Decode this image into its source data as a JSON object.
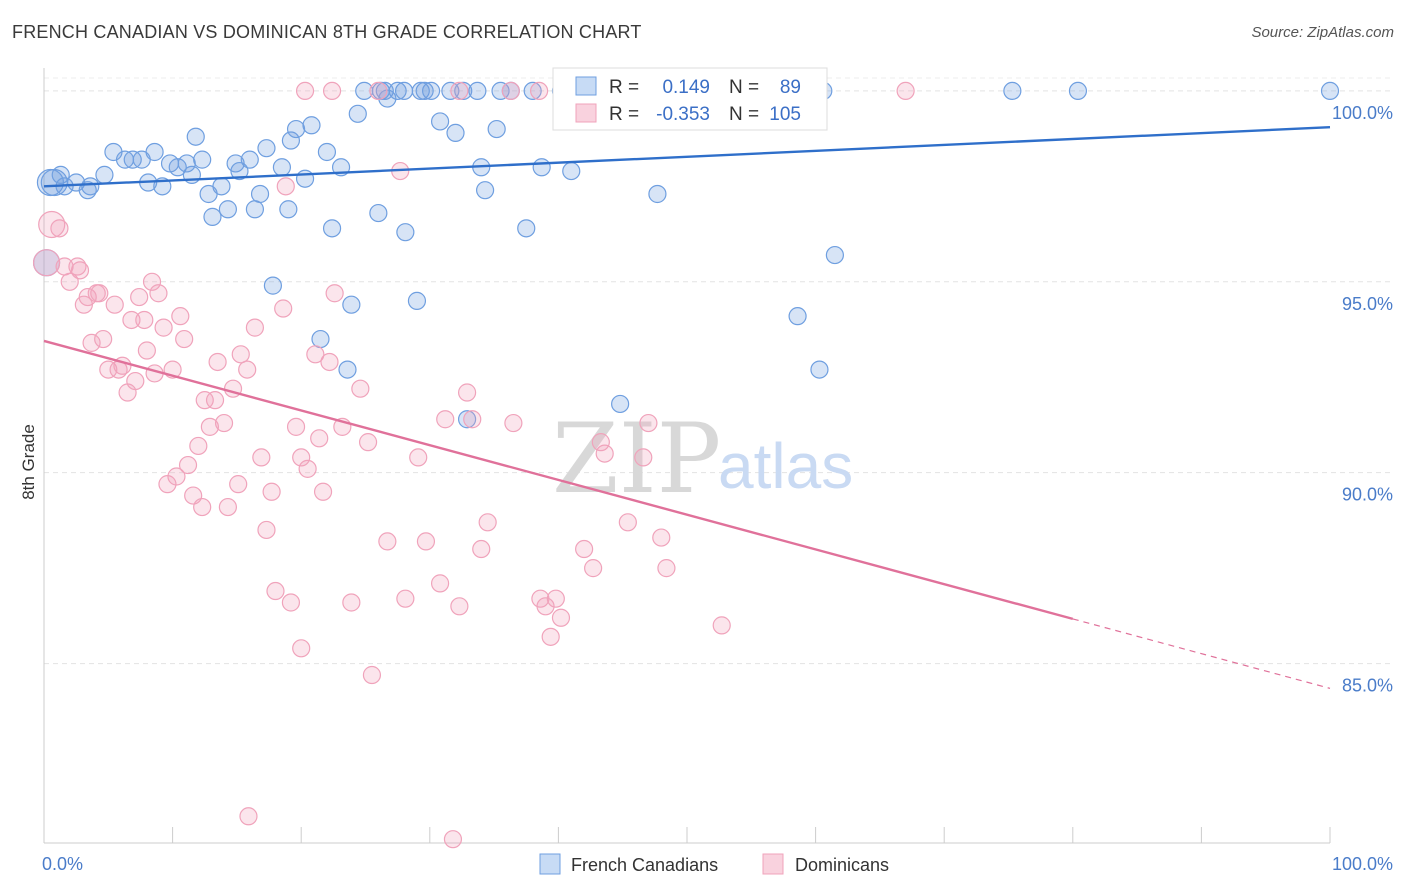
{
  "header": {
    "title": "FRENCH CANADIAN VS DOMINICAN 8TH GRADE CORRELATION CHART",
    "source": "Source: ZipAtlas.com"
  },
  "watermark": {
    "zip": "ZIP",
    "atlas": "atlas"
  },
  "stats": [
    {
      "r_label": "R =",
      "r_value": "0.149",
      "n_label": "N =",
      "n_value": "89",
      "color": "#6f9fe0"
    },
    {
      "r_label": "R =",
      "r_value": "-0.353",
      "n_label": "N =",
      "n_value": "105",
      "color": "#f0a3bb"
    }
  ],
  "legend": [
    {
      "label": "French Canadians",
      "color": "#6f9fe0"
    },
    {
      "label": "Dominicans",
      "color": "#f0a3bb"
    }
  ],
  "chart_data": {
    "type": "scatter",
    "title": "FRENCH CANADIAN VS DOMINICAN 8TH GRADE CORRELATION CHART",
    "xlabel": "",
    "ylabel": "8th Grade",
    "xlim": [
      0,
      100
    ],
    "ylim": [
      80.3,
      100.6
    ],
    "x_tick_labels": [
      "0.0%",
      "100.0%"
    ],
    "y_ticks": [
      85,
      90,
      95,
      100
    ],
    "y_tick_labels": [
      "85.0%",
      "90.0%",
      "95.0%",
      "100.0%"
    ],
    "grid": true,
    "legend_position": "bottom-center",
    "series": [
      {
        "name": "French Canadians",
        "color": "#6f9fe0",
        "trend": {
          "x": [
            0,
            100
          ],
          "y": [
            97.5,
            99.05
          ],
          "dashed_from": null
        },
        "points": [
          [
            0.2,
            95.5
          ],
          [
            0.5,
            97.6
          ],
          [
            0.8,
            97.6
          ],
          [
            1.3,
            97.8
          ],
          [
            1.6,
            97.5
          ],
          [
            2.5,
            97.6
          ],
          [
            3.4,
            97.4
          ],
          [
            3.6,
            97.5
          ],
          [
            4.7,
            97.8
          ],
          [
            5.4,
            98.4
          ],
          [
            6.3,
            98.2
          ],
          [
            6.9,
            98.2
          ],
          [
            7.6,
            98.2
          ],
          [
            8.1,
            97.6
          ],
          [
            8.6,
            98.4
          ],
          [
            9.2,
            97.5
          ],
          [
            9.8,
            98.1
          ],
          [
            10.4,
            98.0
          ],
          [
            11.1,
            98.1
          ],
          [
            11.5,
            97.8
          ],
          [
            11.8,
            98.8
          ],
          [
            12.3,
            98.2
          ],
          [
            12.8,
            97.3
          ],
          [
            13.1,
            96.7
          ],
          [
            13.8,
            97.5
          ],
          [
            14.3,
            96.9
          ],
          [
            14.9,
            98.1
          ],
          [
            15.2,
            97.9
          ],
          [
            16.0,
            98.2
          ],
          [
            16.4,
            96.9
          ],
          [
            16.8,
            97.3
          ],
          [
            17.3,
            98.5
          ],
          [
            17.8,
            94.9
          ],
          [
            18.5,
            98.0
          ],
          [
            19.0,
            96.9
          ],
          [
            19.2,
            98.7
          ],
          [
            19.6,
            99.0
          ],
          [
            20.3,
            97.7
          ],
          [
            20.8,
            99.1
          ],
          [
            21.5,
            93.5
          ],
          [
            22.0,
            98.4
          ],
          [
            22.4,
            96.4
          ],
          [
            23.1,
            98.0
          ],
          [
            23.6,
            92.7
          ],
          [
            23.9,
            94.4
          ],
          [
            24.4,
            99.4
          ],
          [
            24.9,
            100.0
          ],
          [
            26.0,
            96.8
          ],
          [
            26.2,
            100.0
          ],
          [
            26.5,
            100.0
          ],
          [
            26.7,
            99.8
          ],
          [
            27.5,
            100.0
          ],
          [
            28.0,
            100.0
          ],
          [
            28.1,
            96.3
          ],
          [
            29.0,
            94.5
          ],
          [
            29.3,
            100.0
          ],
          [
            30.1,
            100.0
          ],
          [
            30.8,
            99.2
          ],
          [
            31.6,
            100.0
          ],
          [
            32.0,
            98.9
          ],
          [
            32.6,
            100.0
          ],
          [
            32.9,
            91.4
          ],
          [
            33.7,
            100.0
          ],
          [
            34.0,
            98.0
          ],
          [
            34.3,
            97.4
          ],
          [
            35.2,
            99.0
          ],
          [
            35.5,
            100.0
          ],
          [
            36.3,
            100.0
          ],
          [
            37.5,
            96.4
          ],
          [
            38.0,
            100.0
          ],
          [
            38.7,
            98.0
          ],
          [
            40.2,
            100.0
          ],
          [
            41.0,
            97.9
          ],
          [
            42.1,
            100.0
          ],
          [
            44.8,
            91.8
          ],
          [
            47.1,
            100.0
          ],
          [
            47.7,
            97.3
          ],
          [
            51.5,
            100.0
          ],
          [
            53.2,
            100.0
          ],
          [
            55.0,
            100.0
          ],
          [
            56.3,
            100.0
          ],
          [
            58.6,
            94.1
          ],
          [
            60.3,
            92.7
          ],
          [
            60.6,
            100.0
          ],
          [
            61.5,
            95.7
          ],
          [
            75.3,
            100.0
          ],
          [
            80.4,
            100.0
          ],
          [
            100.0,
            100.0
          ],
          [
            29.6,
            100.0
          ]
        ]
      },
      {
        "name": "Dominicans",
        "color": "#f0a3bb",
        "trend": {
          "x": [
            0,
            100
          ],
          "y": [
            93.45,
            84.35
          ],
          "dashed_from": 80
        },
        "points": [
          [
            0.2,
            95.5
          ],
          [
            0.6,
            96.5
          ],
          [
            1.2,
            96.4
          ],
          [
            1.6,
            95.4
          ],
          [
            2.0,
            95.0
          ],
          [
            2.6,
            95.4
          ],
          [
            2.8,
            95.3
          ],
          [
            3.1,
            94.4
          ],
          [
            3.4,
            94.6
          ],
          [
            3.7,
            93.4
          ],
          [
            4.1,
            94.7
          ],
          [
            4.3,
            94.7
          ],
          [
            4.6,
            93.5
          ],
          [
            5.0,
            92.7
          ],
          [
            5.5,
            94.4
          ],
          [
            5.8,
            92.7
          ],
          [
            6.1,
            92.8
          ],
          [
            6.5,
            92.1
          ],
          [
            6.8,
            94.0
          ],
          [
            7.1,
            92.4
          ],
          [
            7.4,
            94.6
          ],
          [
            7.8,
            94.0
          ],
          [
            8.0,
            93.2
          ],
          [
            8.4,
            95.0
          ],
          [
            8.6,
            92.6
          ],
          [
            8.9,
            94.7
          ],
          [
            9.3,
            93.8
          ],
          [
            9.6,
            89.7
          ],
          [
            10.0,
            92.7
          ],
          [
            10.3,
            89.9
          ],
          [
            10.6,
            94.1
          ],
          [
            10.9,
            93.5
          ],
          [
            11.2,
            90.2
          ],
          [
            11.6,
            89.4
          ],
          [
            12.0,
            90.7
          ],
          [
            12.3,
            89.1
          ],
          [
            12.5,
            91.9
          ],
          [
            12.9,
            91.2
          ],
          [
            13.3,
            91.9
          ],
          [
            13.5,
            92.9
          ],
          [
            14.0,
            91.3
          ],
          [
            14.3,
            89.1
          ],
          [
            14.7,
            92.2
          ],
          [
            15.1,
            89.7
          ],
          [
            15.3,
            93.1
          ],
          [
            15.8,
            92.7
          ],
          [
            16.4,
            93.8
          ],
          [
            16.9,
            90.4
          ],
          [
            17.3,
            88.5
          ],
          [
            17.7,
            89.5
          ],
          [
            18.0,
            86.9
          ],
          [
            18.6,
            94.3
          ],
          [
            19.2,
            86.6
          ],
          [
            19.6,
            91.2
          ],
          [
            20.0,
            85.4
          ],
          [
            20.5,
            90.1
          ],
          [
            21.1,
            93.1
          ],
          [
            21.4,
            90.9
          ],
          [
            21.7,
            89.5
          ],
          [
            22.2,
            92.9
          ],
          [
            22.6,
            94.7
          ],
          [
            23.2,
            91.2
          ],
          [
            23.9,
            86.6
          ],
          [
            24.6,
            92.2
          ],
          [
            25.2,
            90.8
          ],
          [
            25.5,
            84.7
          ],
          [
            26.0,
            100.0
          ],
          [
            26.7,
            88.2
          ],
          [
            27.7,
            97.9
          ],
          [
            28.1,
            86.7
          ],
          [
            29.1,
            90.4
          ],
          [
            29.7,
            88.2
          ],
          [
            30.8,
            87.1
          ],
          [
            31.2,
            91.4
          ],
          [
            31.8,
            80.4
          ],
          [
            32.3,
            86.5
          ],
          [
            32.9,
            92.1
          ],
          [
            33.3,
            91.4
          ],
          [
            34.0,
            88.0
          ],
          [
            34.5,
            88.7
          ],
          [
            36.5,
            91.3
          ],
          [
            38.6,
            86.7
          ],
          [
            39.0,
            86.5
          ],
          [
            39.4,
            85.7
          ],
          [
            39.8,
            86.7
          ],
          [
            40.2,
            86.2
          ],
          [
            42.0,
            88.0
          ],
          [
            42.7,
            87.5
          ],
          [
            43.3,
            90.8
          ],
          [
            43.6,
            90.5
          ],
          [
            45.4,
            88.7
          ],
          [
            46.6,
            90.4
          ],
          [
            47.0,
            91.3
          ],
          [
            48.0,
            88.3
          ],
          [
            48.4,
            87.5
          ],
          [
            52.7,
            86.0
          ],
          [
            15.9,
            81.0
          ],
          [
            20.3,
            100.0
          ],
          [
            22.4,
            100.0
          ],
          [
            32.3,
            100.0
          ],
          [
            36.3,
            100.0
          ],
          [
            38.5,
            100.0
          ],
          [
            67.0,
            100.0
          ],
          [
            18.8,
            97.5
          ],
          [
            20.0,
            90.4
          ]
        ]
      }
    ]
  }
}
